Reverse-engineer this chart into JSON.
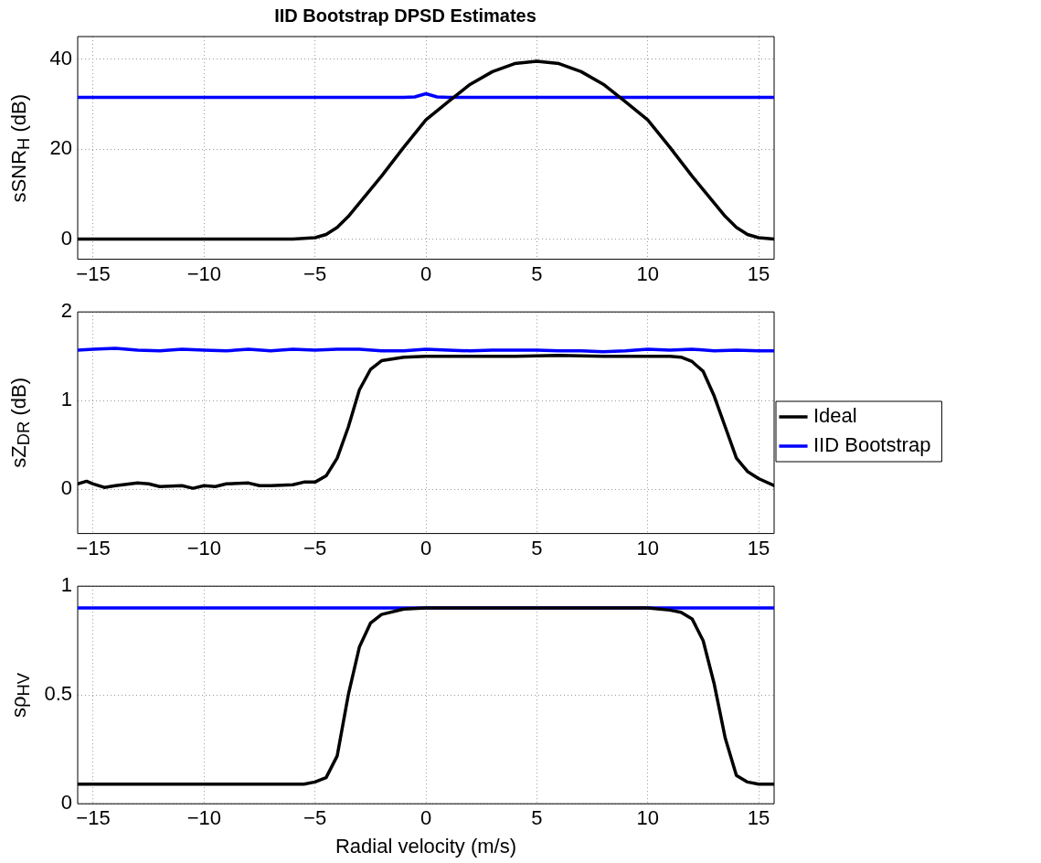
{
  "chart_data": [
    {
      "type": "line",
      "title": "IID Bootstrap DPSD Estimates",
      "ylabel": "sSNR$_{H}$ (dB)",
      "grid": true,
      "legend": false,
      "marker": "none",
      "line_style": "solid",
      "xlim": [
        -15.7,
        15.7
      ],
      "xticks": [
        {
          "value": -15,
          "label": "−15"
        },
        {
          "value": -10,
          "label": "−10"
        },
        {
          "value": -5,
          "label": "−5"
        },
        0,
        5,
        10,
        15
      ],
      "ylim": [
        -4.5,
        45
      ],
      "yticks": [
        0,
        20,
        40
      ],
      "series": [
        {
          "color": "#000000",
          "x": [
            -15.7,
            -15,
            -14,
            -13,
            -12,
            -11,
            -10,
            -9,
            -8,
            -7,
            -6,
            -5,
            -4.5,
            -4,
            -3.5,
            -3,
            -2,
            -1,
            0,
            1,
            2,
            3,
            4,
            5,
            6,
            7,
            8,
            9,
            10,
            11,
            12,
            13,
            13.5,
            14,
            14.5,
            15,
            15.7
          ],
          "values": [
            0,
            0,
            0,
            0,
            0,
            0,
            0,
            0,
            0,
            0,
            0,
            0.3,
            1,
            2.6,
            5,
            8,
            14,
            20.4,
            26.5,
            30.5,
            34.4,
            37.2,
            39,
            39.5,
            39,
            37.2,
            34.4,
            30.5,
            26.5,
            20.4,
            14,
            8,
            5,
            2.6,
            1,
            0.3,
            0
          ]
        },
        {
          "color": "#0000ff",
          "x": [
            -15.7,
            -5,
            -1,
            -0.5,
            0,
            0.5,
            1,
            15.7
          ],
          "values": [
            31.5,
            31.5,
            31.5,
            31.6,
            32.3,
            31.6,
            31.5,
            31.5
          ]
        }
      ]
    },
    {
      "type": "line",
      "ylabel": "sZ$_{DR}$ (dB)",
      "grid": true,
      "legend": "right",
      "marker": "none",
      "line_style": "solid",
      "xlim": [
        -15.7,
        15.7
      ],
      "xticks": [
        {
          "value": -15,
          "label": "−15"
        },
        {
          "value": -10,
          "label": "−10"
        },
        {
          "value": -5,
          "label": "−5"
        },
        0,
        5,
        10,
        15
      ],
      "ylim": [
        -0.5,
        2
      ],
      "yticks": [
        0,
        1,
        2
      ],
      "series": [
        {
          "name": "Ideal",
          "color": "#000000",
          "x": [
            -15.7,
            -15.3,
            -15,
            -14.5,
            -14,
            -13,
            -12.5,
            -12,
            -11,
            -10.5,
            -10,
            -9.5,
            -9,
            -8,
            -7.5,
            -7,
            -6,
            -5.5,
            -5,
            -4.5,
            -4,
            -3.5,
            -3,
            -2.5,
            -2,
            -1,
            0,
            2,
            4,
            6,
            8,
            10,
            11,
            11.5,
            12,
            12.5,
            13,
            13.5,
            14,
            14.5,
            15,
            15.7
          ],
          "values": [
            0.06,
            0.09,
            0.06,
            0.02,
            0.04,
            0.07,
            0.06,
            0.03,
            0.04,
            0.01,
            0.04,
            0.03,
            0.06,
            0.07,
            0.04,
            0.04,
            0.05,
            0.08,
            0.08,
            0.15,
            0.35,
            0.7,
            1.12,
            1.35,
            1.45,
            1.49,
            1.5,
            1.5,
            1.5,
            1.51,
            1.5,
            1.5,
            1.5,
            1.49,
            1.44,
            1.33,
            1.05,
            0.7,
            0.35,
            0.2,
            0.12,
            0.04
          ]
        },
        {
          "name": "IID Bootstrap",
          "color": "#0000ff",
          "x": [
            -15.7,
            -15,
            -14,
            -13,
            -12,
            -11,
            -10,
            -9,
            -8,
            -7,
            -6,
            -5,
            -4,
            -3,
            -2,
            -1,
            0,
            1,
            2,
            3,
            4,
            5,
            6,
            7,
            8,
            9,
            10,
            11,
            12,
            13,
            14,
            15,
            15.7
          ],
          "values": [
            1.57,
            1.58,
            1.59,
            1.57,
            1.56,
            1.58,
            1.57,
            1.56,
            1.58,
            1.56,
            1.58,
            1.57,
            1.58,
            1.58,
            1.56,
            1.56,
            1.58,
            1.57,
            1.56,
            1.57,
            1.57,
            1.57,
            1.56,
            1.56,
            1.55,
            1.56,
            1.58,
            1.57,
            1.58,
            1.56,
            1.57,
            1.56,
            1.56
          ]
        }
      ]
    },
    {
      "type": "line",
      "ylabel": "sρ$_{HV}$",
      "xlabel": "Radial velocity (m/s)",
      "grid": true,
      "legend": false,
      "marker": "none",
      "line_style": "solid",
      "xlim": [
        -15.7,
        15.7
      ],
      "xticks": [
        {
          "value": -15,
          "label": "−15"
        },
        {
          "value": -10,
          "label": "−10"
        },
        {
          "value": -5,
          "label": "−5"
        },
        0,
        5,
        10,
        15
      ],
      "ylim": [
        0,
        1
      ],
      "yticks": [
        0,
        0.5,
        1
      ],
      "series": [
        {
          "color": "#000000",
          "x": [
            -15.7,
            -15,
            -13,
            -11,
            -9,
            -7,
            -5.5,
            -5,
            -4.5,
            -4,
            -3.5,
            -3,
            -2.5,
            -2,
            -1,
            0,
            5,
            10,
            11,
            11.5,
            12,
            12.5,
            13,
            13.5,
            14,
            14.5,
            15,
            15.7
          ],
          "values": [
            0.09,
            0.09,
            0.09,
            0.09,
            0.09,
            0.09,
            0.09,
            0.1,
            0.12,
            0.22,
            0.5,
            0.72,
            0.83,
            0.87,
            0.895,
            0.9,
            0.9,
            0.9,
            0.89,
            0.88,
            0.85,
            0.75,
            0.55,
            0.3,
            0.13,
            0.1,
            0.09,
            0.09
          ]
        },
        {
          "color": "#0000ff",
          "x": [
            -15.7,
            15.7
          ],
          "values": [
            0.9,
            0.9
          ]
        }
      ]
    }
  ]
}
